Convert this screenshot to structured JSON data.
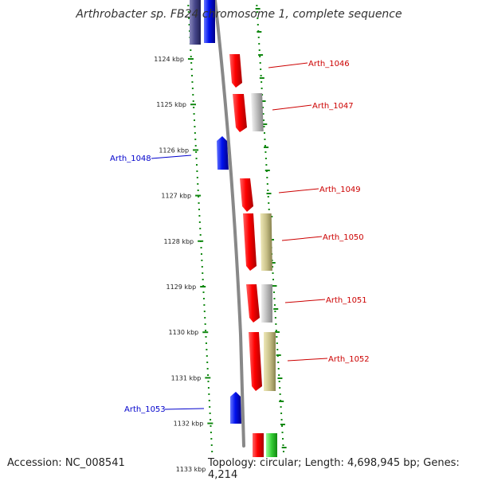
{
  "title": "Arthrobacter sp. FB24 chromosome 1, complete sequence",
  "accession": "Accession: NC_008541",
  "summary": "Topology: circular; Length: 4,698,945 bp; Genes: 4,214",
  "colors": {
    "forward_cds": "#ee1111",
    "reverse_cds": "#1122ee",
    "reverse_cds_dark": "#444488",
    "gray_feature": "#b8b8b8",
    "khaki_feature": "#c8c088",
    "green_feature": "#33cc33",
    "tick": "#118811",
    "backbone": "#888888",
    "forward_label": "#cc0000",
    "reverse_label": "#0000cc"
  },
  "ticks": [
    "1124 kbp",
    "1125 kbp",
    "1126 kbp",
    "1127 kbp",
    "1128 kbp",
    "1129 kbp",
    "1130 kbp",
    "1131 kbp",
    "1132 kbp",
    "1133 kbp"
  ],
  "gene_labels": [
    {
      "text": "Arth_1046",
      "strand": "forward"
    },
    {
      "text": "Arth_1047",
      "strand": "forward"
    },
    {
      "text": "Arth_1048",
      "strand": "reverse"
    },
    {
      "text": "Arth_1049",
      "strand": "forward"
    },
    {
      "text": "Arth_1050",
      "strand": "forward"
    },
    {
      "text": "Arth_1051",
      "strand": "forward"
    },
    {
      "text": "Arth_1052",
      "strand": "forward"
    },
    {
      "text": "Arth_1053",
      "strand": "reverse"
    }
  ]
}
